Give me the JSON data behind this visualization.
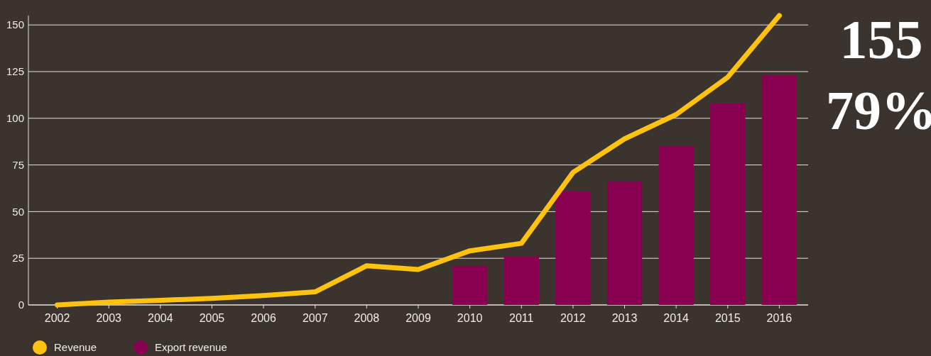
{
  "chart_data": {
    "type": "bar",
    "categories": [
      "2002",
      "2003",
      "2004",
      "2005",
      "2006",
      "2007",
      "2008",
      "2009",
      "2010",
      "2011",
      "2012",
      "2013",
      "2014",
      "2015",
      "2016"
    ],
    "series": [
      {
        "name": "Revenue",
        "type": "line",
        "color": "#ffc20e",
        "values": [
          0,
          1.5,
          2.5,
          3.5,
          5,
          7,
          21,
          19,
          29,
          33,
          71,
          89,
          102,
          122,
          155
        ]
      },
      {
        "name": "Export revenue",
        "color": "#8a0050",
        "values": [
          null,
          null,
          null,
          null,
          null,
          null,
          null,
          null,
          21,
          26,
          61,
          66,
          85,
          108,
          123
        ]
      }
    ],
    "ylim": [
      0,
      155
    ],
    "yticks": [
      0,
      25,
      50,
      75,
      100,
      125,
      150
    ],
    "grid": "y",
    "legend": "bottom left",
    "annotations": [
      "155",
      "79%"
    ]
  }
}
